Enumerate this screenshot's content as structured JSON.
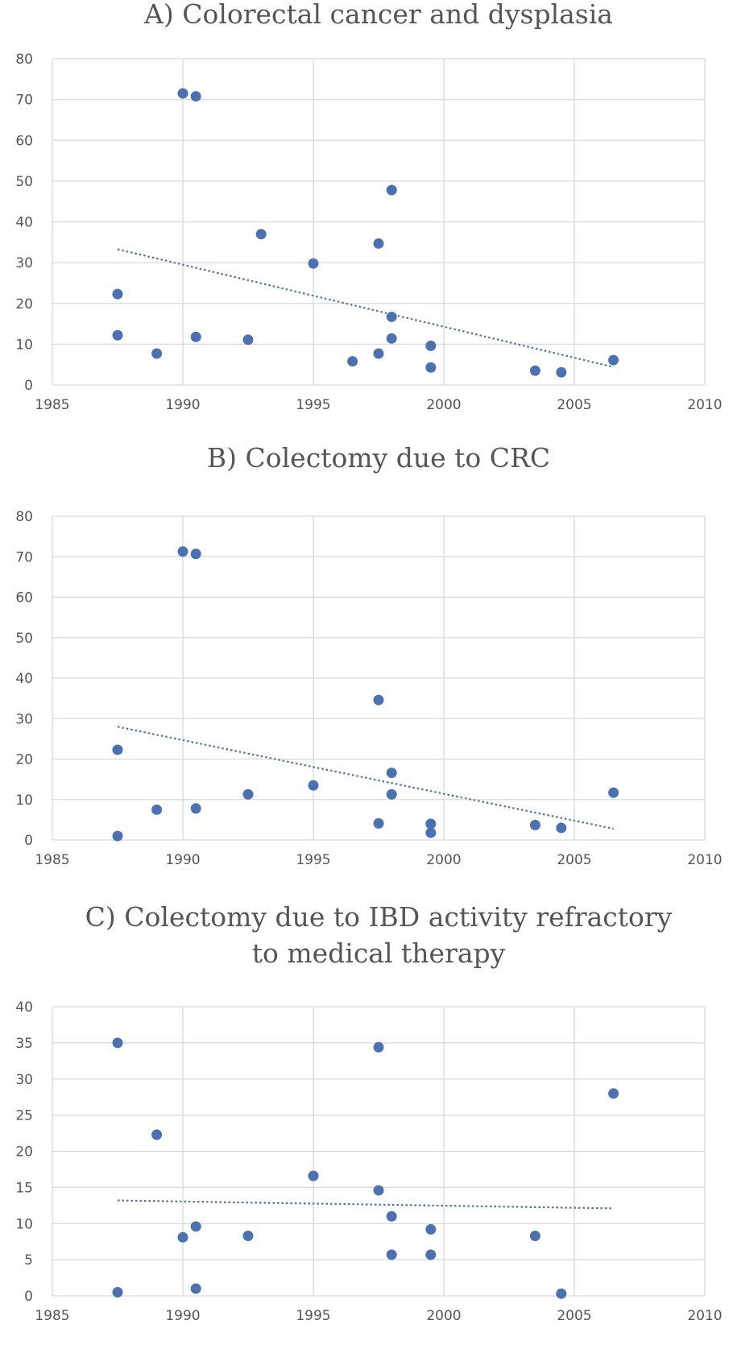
{
  "chart_data": [
    {
      "type": "scatter",
      "title": "A) Colorectal cancer and dysplasia",
      "xlim": [
        1985,
        2010
      ],
      "ylim": [
        0,
        80
      ],
      "x_ticks": [
        "1985",
        "1990",
        "1995",
        "2000",
        "2005",
        "2010"
      ],
      "y_ticks": [
        "0",
        "10",
        "20",
        "30",
        "40",
        "50",
        "60",
        "70",
        "80"
      ],
      "grid": true,
      "marker_color": "#4a72b2",
      "trendline": {
        "x": [
          1987.5,
          2006.5
        ],
        "y": [
          33.3,
          4.4
        ]
      },
      "series": [
        {
          "x": [
            1987.5,
            1987.5,
            1989,
            1990,
            1990.5,
            1990.5,
            1992.5,
            1993,
            1995,
            1996.5,
            1997.5,
            1997.5,
            1998,
            1998,
            1998,
            1999.5,
            1999.5,
            2003.5,
            2004.5,
            2006.5
          ],
          "y": [
            22.3,
            12.2,
            7.7,
            71.5,
            70.8,
            11.8,
            11.1,
            37.0,
            29.8,
            5.8,
            7.7,
            34.7,
            47.8,
            16.7,
            11.4,
            9.6,
            4.3,
            3.5,
            3.1,
            6.1
          ]
        }
      ]
    },
    {
      "type": "scatter",
      "title": "B) Colectomy due to CRC",
      "xlim": [
        1985,
        2010
      ],
      "ylim": [
        0,
        80
      ],
      "x_ticks": [
        "1985",
        "1990",
        "1995",
        "2000",
        "2005",
        "2010"
      ],
      "y_ticks": [
        "0",
        "10",
        "20",
        "30",
        "40",
        "50",
        "60",
        "70",
        "80"
      ],
      "grid": true,
      "marker_color": "#4a72b2",
      "trendline": {
        "x": [
          1987.5,
          2006.5
        ],
        "y": [
          28.0,
          2.8
        ]
      },
      "series": [
        {
          "x": [
            1987.5,
            1987.5,
            1989,
            1990,
            1990.5,
            1990.5,
            1992.5,
            1995,
            1997.5,
            1997.5,
            1998,
            1998,
            1999.5,
            1999.5,
            2003.5,
            2004.5,
            2006.5
          ],
          "y": [
            22.3,
            1.0,
            7.5,
            71.3,
            70.7,
            7.8,
            11.3,
            13.5,
            34.6,
            4.1,
            16.6,
            11.3,
            4.0,
            1.8,
            3.7,
            3.0,
            11.7
          ]
        }
      ]
    },
    {
      "type": "scatter",
      "title": "C) Colectomy due to IBD activity refractory to medical therapy",
      "title_lines": [
        "C) Colectomy due to IBD activity refractory",
        "to medical therapy"
      ],
      "xlim": [
        1985,
        2010
      ],
      "ylim": [
        0,
        40
      ],
      "x_ticks": [
        "1985",
        "1990",
        "1995",
        "2000",
        "2005",
        "2010"
      ],
      "y_ticks": [
        "0",
        "5",
        "10",
        "15",
        "20",
        "25",
        "30",
        "35",
        "40"
      ],
      "grid": true,
      "marker_color": "#4a72b2",
      "trendline": {
        "x": [
          1987.5,
          2006.5
        ],
        "y": [
          13.2,
          12.1
        ]
      },
      "series": [
        {
          "x": [
            1987.5,
            1987.5,
            1989,
            1990,
            1990.5,
            1990.5,
            1992.5,
            1995,
            1997.5,
            1997.5,
            1998,
            1998,
            1999.5,
            1999.5,
            2003.5,
            2004.5,
            2006.5
          ],
          "y": [
            35.0,
            0.5,
            22.3,
            8.1,
            9.6,
            1.0,
            8.3,
            16.6,
            34.4,
            14.6,
            11.0,
            5.7,
            9.2,
            5.7,
            8.3,
            0.3,
            28.0
          ]
        }
      ]
    }
  ]
}
